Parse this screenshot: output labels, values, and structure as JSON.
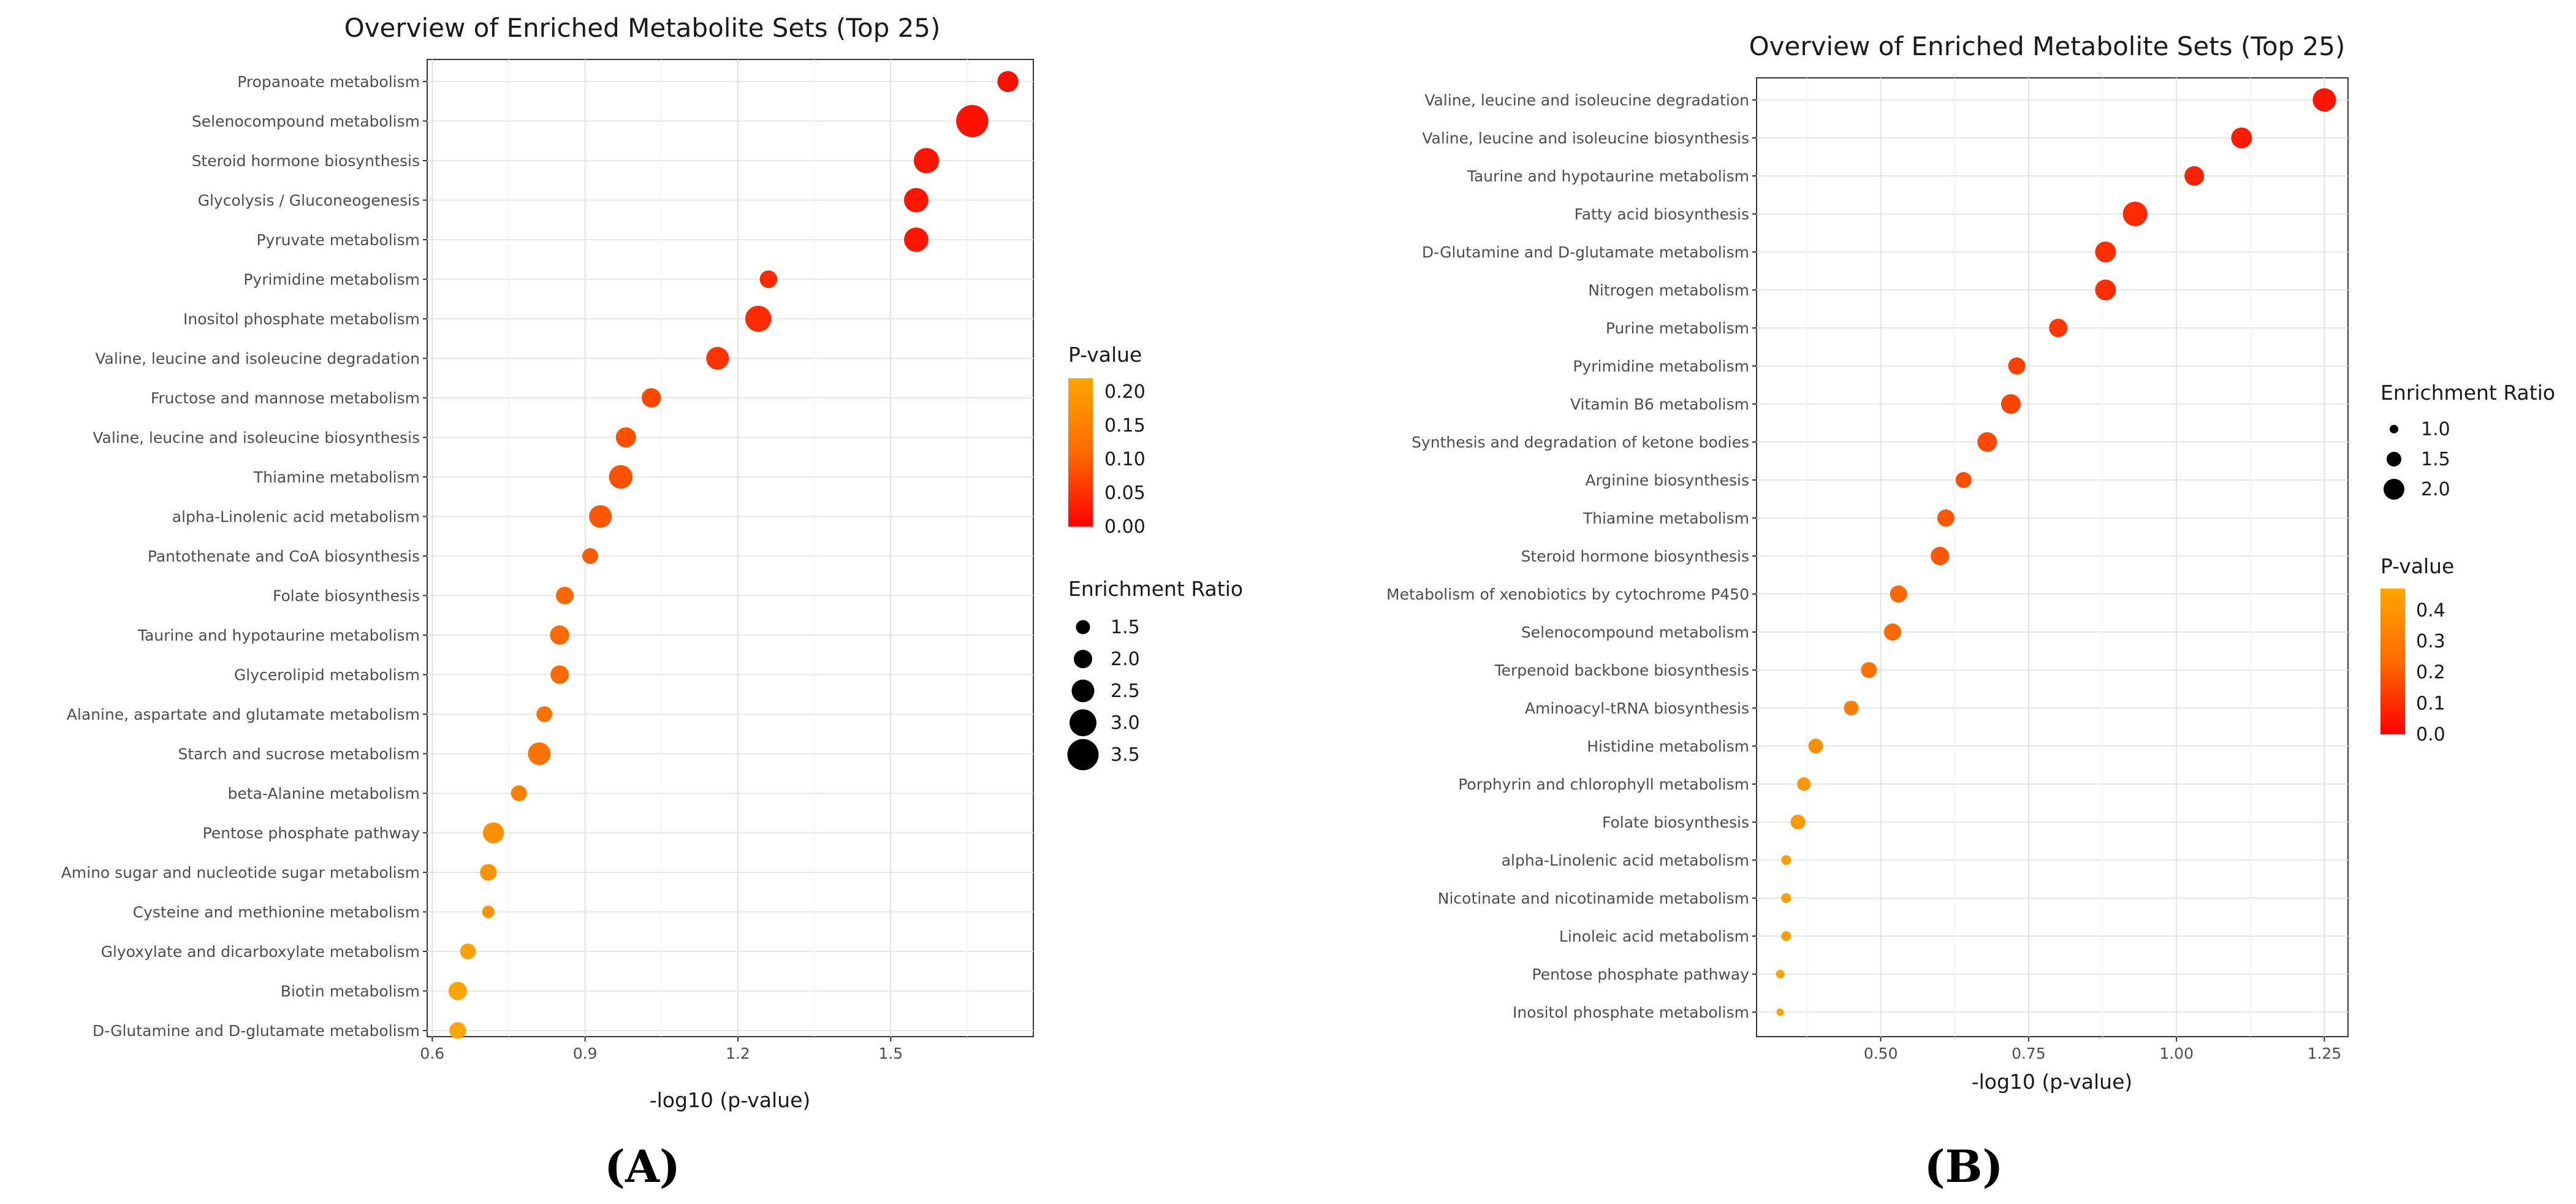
{
  "chart_data": [
    {
      "type": "scatter",
      "panel_label": "(A)",
      "title": "Overview of Enriched Metabolite Sets (Top 25)",
      "xlabel": "-log10 (p-value)",
      "ylabel": "",
      "xlim": [
        0.59,
        1.78
      ],
      "xticks": [
        0.6,
        0.9,
        1.2,
        1.5
      ],
      "xtick_labels": [
        "0.6",
        "0.9",
        "1.2",
        "1.5"
      ],
      "color_legend": {
        "title": "P-value",
        "labels": [
          "0.20",
          "0.15",
          "0.10",
          "0.05",
          "0.00"
        ],
        "values": [
          0.2,
          0.15,
          0.1,
          0.05,
          0.0
        ],
        "min": 0.0,
        "max": 0.22
      },
      "size_legend": {
        "title": "Enrichment Ratio",
        "labels": [
          "1.5",
          "2.0",
          "2.5",
          "3.0",
          "3.5"
        ],
        "values": [
          1.5,
          2.0,
          2.5,
          3.0,
          3.5
        ]
      },
      "categories": [
        "Propanoate metabolism",
        "Selenocompound metabolism",
        "Steroid hormone biosynthesis",
        "Glycolysis / Gluconeogenesis",
        "Pyruvate metabolism",
        "Pyrimidine metabolism",
        "Inositol phosphate metabolism",
        "Valine, leucine and isoleucine degradation",
        "Fructose and mannose metabolism",
        "Valine, leucine and isoleucine biosynthesis",
        "Thiamine metabolism",
        "alpha-Linolenic acid metabolism",
        "Pantothenate and CoA biosynthesis",
        "Folate biosynthesis",
        "Taurine and hypotaurine metabolism",
        "Glycerolipid metabolism",
        "Alanine, aspartate and glutamate metabolism",
        "Starch and sucrose metabolism",
        "beta-Alanine metabolism",
        "Pentose phosphate pathway",
        "Amino sugar and nucleotide sugar metabolism",
        "Cysteine and methionine metabolism",
        "Glyoxylate and dicarboxylate metabolism",
        "Biotin metabolism",
        "D-Glutamine and D-glutamate metabolism"
      ],
      "x": [
        1.73,
        1.66,
        1.57,
        1.55,
        1.55,
        1.26,
        1.24,
        1.16,
        1.03,
        0.98,
        0.97,
        0.93,
        0.91,
        0.86,
        0.85,
        0.85,
        0.82,
        0.81,
        0.77,
        0.72,
        0.71,
        0.71,
        0.67,
        0.65,
        0.65
      ],
      "pvalue": [
        0.019,
        0.022,
        0.027,
        0.028,
        0.028,
        0.055,
        0.058,
        0.069,
        0.093,
        0.105,
        0.107,
        0.117,
        0.123,
        0.138,
        0.141,
        0.141,
        0.151,
        0.155,
        0.17,
        0.191,
        0.195,
        0.195,
        0.214,
        0.224,
        0.224
      ],
      "enrichment_ratio": [
        2.3,
        3.6,
        2.8,
        2.7,
        2.7,
        1.9,
        2.9,
        2.5,
        2.1,
        2.2,
        2.6,
        2.5,
        1.7,
        1.9,
        2.1,
        2.0,
        1.7,
        2.5,
        1.7,
        2.3,
        1.8,
        1.3,
        1.7,
        2.0,
        1.8
      ]
    },
    {
      "type": "scatter",
      "panel_label": "(B)",
      "title": "Overview of Enriched Metabolite Sets (Top 25)",
      "xlabel": "-log10 (p-value)",
      "ylabel": "",
      "xlim": [
        0.29,
        1.29
      ],
      "xticks": [
        0.5,
        0.75,
        1.0,
        1.25
      ],
      "xtick_labels": [
        "0.50",
        "0.75",
        "1.00",
        "1.25"
      ],
      "color_legend": {
        "title": "P-value",
        "labels": [
          "0.4",
          "0.3",
          "0.2",
          "0.1",
          "0.0"
        ],
        "values": [
          0.4,
          0.3,
          0.2,
          0.1,
          0.0
        ],
        "min": 0.0,
        "max": 0.47
      },
      "size_legend": {
        "title": "Enrichment Ratio",
        "labels": [
          "1.0",
          "1.5",
          "2.0"
        ],
        "values": [
          1.0,
          1.5,
          2.0
        ]
      },
      "categories": [
        "Valine, leucine and isoleucine degradation",
        "Valine, leucine and isoleucine biosynthesis",
        "Taurine and hypotaurine metabolism",
        "Fatty acid biosynthesis",
        "D-Glutamine and D-glutamate metabolism",
        "Nitrogen metabolism",
        "Purine metabolism",
        "Pyrimidine metabolism",
        "Vitamin B6 metabolism",
        "Synthesis and degradation of ketone bodies",
        "Arginine biosynthesis",
        "Thiamine metabolism",
        "Steroid hormone biosynthesis",
        "Metabolism of xenobiotics by cytochrome P450",
        "Selenocompound metabolism",
        "Terpenoid backbone biosynthesis",
        "Aminoacyl-tRNA biosynthesis",
        "Histidine metabolism",
        "Porphyrin and chlorophyll metabolism",
        "Folate biosynthesis",
        "alpha-Linolenic acid metabolism",
        "Nicotinate and nicotinamide metabolism",
        "Linoleic acid metabolism",
        "Pentose phosphate pathway",
        "Inositol phosphate metabolism"
      ],
      "x": [
        1.25,
        1.11,
        1.03,
        0.93,
        0.88,
        0.88,
        0.8,
        0.73,
        0.72,
        0.68,
        0.64,
        0.61,
        0.6,
        0.53,
        0.52,
        0.48,
        0.45,
        0.39,
        0.37,
        0.36,
        0.34,
        0.34,
        0.34,
        0.33,
        0.33
      ],
      "pvalue": [
        0.056,
        0.078,
        0.093,
        0.117,
        0.132,
        0.132,
        0.158,
        0.186,
        0.191,
        0.209,
        0.229,
        0.245,
        0.251,
        0.295,
        0.302,
        0.331,
        0.355,
        0.407,
        0.427,
        0.437,
        0.457,
        0.457,
        0.457,
        0.468,
        0.468
      ],
      "enrichment_ratio": [
        2.2,
        2.0,
        1.9,
        2.3,
        2.0,
        2.0,
        1.8,
        1.7,
        1.9,
        1.9,
        1.6,
        1.7,
        1.8,
        1.7,
        1.7,
        1.6,
        1.5,
        1.5,
        1.4,
        1.5,
        1.1,
        1.1,
        1.1,
        1.0,
        0.9
      ]
    }
  ]
}
